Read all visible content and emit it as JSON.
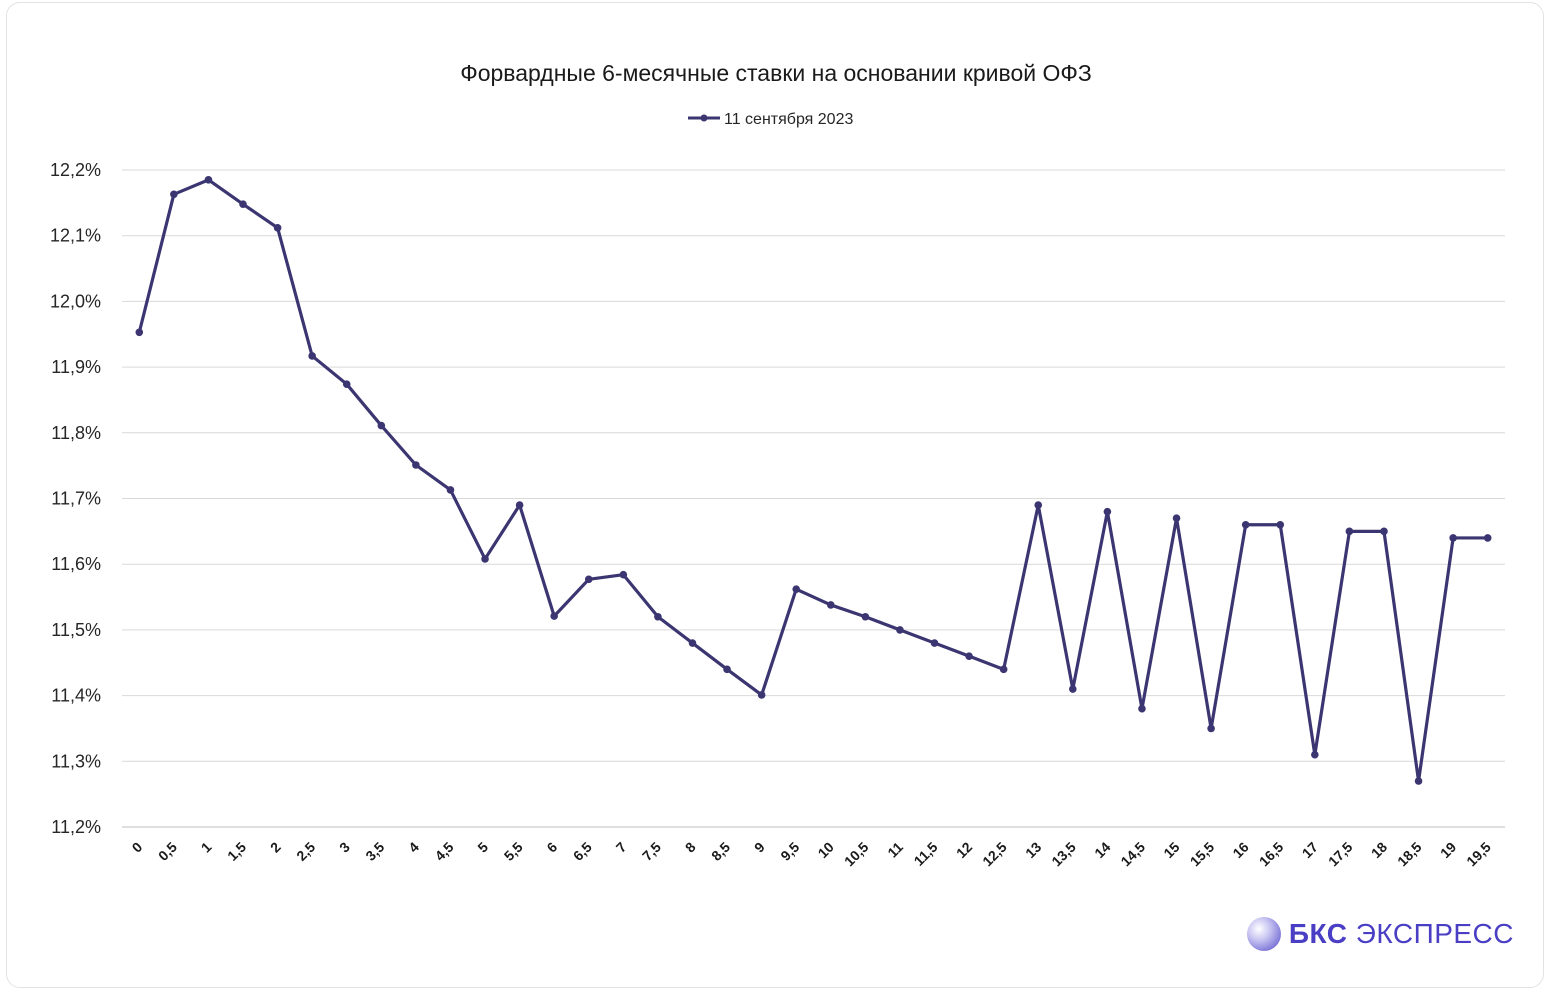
{
  "chart_data": {
    "type": "line",
    "title": "Форвардные 6-месячные ставки на основании кривой ОФЗ",
    "xlabel": "",
    "ylabel": "",
    "ylim": [
      11.2,
      12.2
    ],
    "yticks": [
      "11,2%",
      "11,3%",
      "11,4%",
      "11,5%",
      "11,6%",
      "11,7%",
      "11,8%",
      "11,9%",
      "12,0%",
      "12,1%",
      "12,2%"
    ],
    "categories": [
      "0",
      "0,5",
      "1",
      "1,5",
      "2",
      "2,5",
      "3",
      "3,5",
      "4",
      "4,5",
      "5",
      "5,5",
      "6",
      "6,5",
      "7",
      "7,5",
      "8",
      "8,5",
      "9",
      "9,5",
      "10",
      "10,5",
      "11",
      "11,5",
      "12",
      "12,5",
      "13",
      "13,5",
      "14",
      "14,5",
      "15",
      "15,5",
      "16",
      "16,5",
      "17",
      "17,5",
      "18",
      "18,5",
      "19",
      "19,5"
    ],
    "series": [
      {
        "name": "11 сентября 2023",
        "color": "#3b3671",
        "values": [
          11.953,
          12.163,
          12.185,
          12.148,
          12.112,
          11.917,
          11.874,
          11.811,
          11.751,
          11.713,
          11.608,
          11.69,
          11.521,
          11.577,
          11.584,
          11.52,
          11.48,
          11.44,
          11.401,
          11.562,
          11.538,
          11.52,
          11.5,
          11.48,
          11.46,
          11.44,
          11.69,
          11.41,
          11.68,
          11.38,
          11.67,
          11.35,
          11.66,
          11.66,
          11.31,
          11.65,
          11.65,
          11.27,
          11.64,
          11.64
        ]
      }
    ],
    "grid": true,
    "legend_position": "top"
  },
  "watermark": {
    "brand_bold": "БКС",
    "brand_rest": "ЭКСПРЕСС",
    "brand_color": "#4a3fc4"
  }
}
